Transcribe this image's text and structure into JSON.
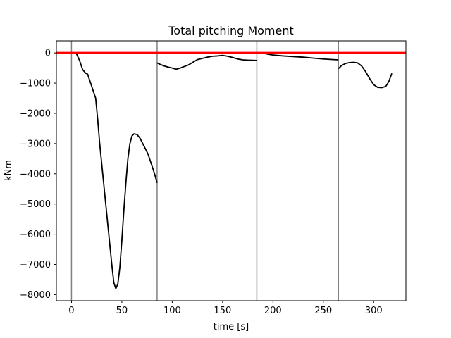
{
  "chart_data": {
    "type": "line",
    "title": "Total pitching Moment",
    "xlabel": "time [s]",
    "ylabel": "kNm",
    "xlim": [
      -15,
      332
    ],
    "ylim": [
      -8200,
      400
    ],
    "xticks": [
      0,
      50,
      100,
      150,
      200,
      250,
      300
    ],
    "yticks": [
      0,
      -1000,
      -2000,
      -3000,
      -4000,
      -5000,
      -6000,
      -7000,
      -8000
    ],
    "grid": false,
    "legend": "none",
    "colors": {
      "series": "#000000",
      "reference_line": "#ff0000",
      "phase_lines": "#808080"
    },
    "reference_line_y": 0,
    "phase_boundaries_x": [
      0,
      85,
      184,
      265
    ],
    "series": [
      {
        "segments": [
          [
            [
              3,
              0
            ],
            [
              5,
              -30
            ],
            [
              8,
              -250
            ],
            [
              11,
              -550
            ],
            [
              14,
              -670
            ],
            [
              16,
              -700
            ],
            [
              18,
              -900
            ],
            [
              21,
              -1200
            ],
            [
              24,
              -1500
            ],
            [
              26,
              -2200
            ],
            [
              28,
              -3000
            ],
            [
              31,
              -4000
            ],
            [
              34,
              -5000
            ],
            [
              37,
              -6000
            ],
            [
              40,
              -7000
            ],
            [
              42,
              -7600
            ],
            [
              44,
              -7800
            ],
            [
              46,
              -7650
            ],
            [
              48,
              -7100
            ],
            [
              50,
              -6200
            ],
            [
              52,
              -5200
            ],
            [
              54,
              -4300
            ],
            [
              56,
              -3500
            ],
            [
              58,
              -3000
            ],
            [
              60,
              -2750
            ],
            [
              62,
              -2680
            ],
            [
              65,
              -2700
            ],
            [
              68,
              -2820
            ],
            [
              70,
              -2950
            ],
            [
              73,
              -3150
            ],
            [
              76,
              -3350
            ],
            [
              79,
              -3650
            ],
            [
              82,
              -3950
            ],
            [
              85,
              -4300
            ]
          ],
          [
            [
              85,
              -330
            ],
            [
              88,
              -380
            ],
            [
              92,
              -430
            ],
            [
              96,
              -470
            ],
            [
              100,
              -500
            ],
            [
              104,
              -540
            ],
            [
              108,
              -500
            ],
            [
              112,
              -450
            ],
            [
              116,
              -400
            ],
            [
              120,
              -320
            ],
            [
              125,
              -220
            ],
            [
              130,
              -180
            ],
            [
              135,
              -140
            ],
            [
              140,
              -110
            ],
            [
              145,
              -100
            ],
            [
              150,
              -80
            ],
            [
              155,
              -110
            ],
            [
              160,
              -150
            ],
            [
              165,
              -200
            ],
            [
              170,
              -230
            ],
            [
              175,
              -240
            ],
            [
              180,
              -245
            ],
            [
              184,
              -250
            ]
          ],
          [
            [
              184,
              0
            ],
            [
              190,
              -10
            ],
            [
              195,
              -40
            ],
            [
              200,
              -70
            ],
            [
              210,
              -100
            ],
            [
              220,
              -120
            ],
            [
              230,
              -140
            ],
            [
              240,
              -170
            ],
            [
              250,
              -200
            ],
            [
              260,
              -220
            ],
            [
              265,
              -230
            ]
          ],
          [
            [
              265,
              -520
            ],
            [
              268,
              -420
            ],
            [
              272,
              -350
            ],
            [
              276,
              -320
            ],
            [
              280,
              -310
            ],
            [
              284,
              -330
            ],
            [
              288,
              -430
            ],
            [
              292,
              -620
            ],
            [
              296,
              -850
            ],
            [
              300,
              -1050
            ],
            [
              304,
              -1140
            ],
            [
              308,
              -1150
            ],
            [
              312,
              -1110
            ],
            [
              315,
              -950
            ],
            [
              318,
              -680
            ]
          ]
        ]
      }
    ]
  }
}
